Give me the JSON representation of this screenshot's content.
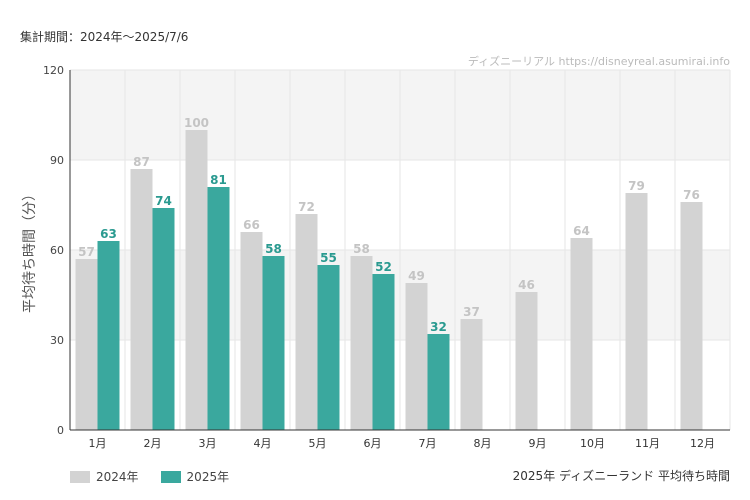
{
  "header": {
    "period": "集計期間：2024年〜2025/7/6",
    "watermark": "ディズニーリアル https://disneyreal.asumirai.info"
  },
  "footer": {
    "title": "2025年 ディズニーランド 平均待ち時間"
  },
  "colors": {
    "series_2024": "#d3d3d3",
    "series_2025": "#3aa89e",
    "label_2024": "#c4c4c4",
    "label_2025": "#2a9a90",
    "band": "#f4f4f4",
    "grid": "#e6e6e6"
  },
  "chart_data": {
    "type": "bar",
    "ylabel": "平均待ち時間（分）",
    "ylim": [
      0,
      120
    ],
    "yticks": [
      "0",
      "30",
      "60",
      "90",
      "120"
    ],
    "categories": [
      "1月",
      "2月",
      "3月",
      "4月",
      "5月",
      "6月",
      "7月",
      "8月",
      "9月",
      "10月",
      "11月",
      "12月"
    ],
    "series": [
      {
        "name": "2024年",
        "values": [
          57,
          87,
          100,
          66,
          72,
          58,
          49,
          37,
          46,
          64,
          79,
          76
        ]
      },
      {
        "name": "2025年",
        "values": [
          63,
          74,
          81,
          58,
          55,
          52,
          32,
          null,
          null,
          null,
          null,
          null
        ]
      }
    ],
    "legend_position": "bottom-left",
    "grid": true
  }
}
